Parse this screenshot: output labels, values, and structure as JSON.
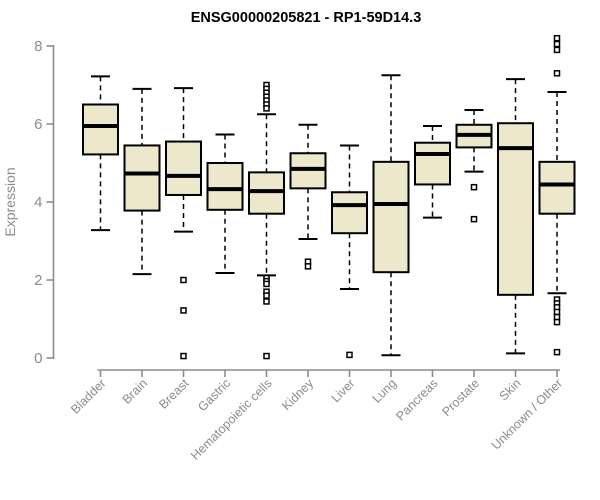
{
  "chart_data": {
    "type": "boxplot",
    "title": "ENSG00000205821 - RP1-59D14.3",
    "ylabel": "Expression",
    "xlabel": "",
    "ylim": [
      0,
      8
    ],
    "yticks": [
      0,
      2,
      4,
      6,
      8
    ],
    "grid": false,
    "legend_position": "none",
    "colors": {
      "box_fill": "#EDE7CB",
      "box_border": "#000000",
      "median": "#000000",
      "whisker": "#000000",
      "outlier_fill": "#ffffff",
      "axis": "#8c8c8c",
      "title": "#000000"
    },
    "categories": [
      "Bladder",
      "Brain",
      "Breast",
      "Gastric",
      "Hematopoietic cells",
      "Kidney",
      "Liver",
      "Lung",
      "Pancreas",
      "Prostate",
      "Skin",
      "Unknown / Other"
    ],
    "series": [
      {
        "name": "Bladder",
        "whisker_low": 3.28,
        "q1": 5.22,
        "median": 5.95,
        "q3": 6.5,
        "whisker_high": 7.22,
        "outliers": []
      },
      {
        "name": "Brain",
        "whisker_low": 2.15,
        "q1": 3.78,
        "median": 4.73,
        "q3": 5.45,
        "whisker_high": 6.9,
        "outliers": []
      },
      {
        "name": "Breast",
        "whisker_low": 3.24,
        "q1": 4.18,
        "median": 4.67,
        "q3": 5.55,
        "whisker_high": 6.92,
        "outliers": [
          2.0,
          1.22,
          0.05
        ]
      },
      {
        "name": "Gastric",
        "whisker_low": 2.18,
        "q1": 3.8,
        "median": 4.33,
        "q3": 5.0,
        "whisker_high": 5.73,
        "outliers": []
      },
      {
        "name": "Hematopoietic cells",
        "whisker_low": 2.12,
        "q1": 3.7,
        "median": 4.28,
        "q3": 4.76,
        "whisker_high": 6.25,
        "outliers": [
          7.0,
          6.9,
          6.8,
          6.7,
          6.6,
          6.5,
          6.4,
          2.05,
          1.97,
          1.9,
          1.7,
          1.6,
          1.45,
          0.05
        ]
      },
      {
        "name": "Kidney",
        "whisker_low": 3.05,
        "q1": 4.35,
        "median": 4.85,
        "q3": 5.25,
        "whisker_high": 5.98,
        "outliers": [
          2.47,
          2.35
        ]
      },
      {
        "name": "Liver",
        "whisker_low": 1.77,
        "q1": 3.2,
        "median": 3.92,
        "q3": 4.25,
        "whisker_high": 5.45,
        "outliers": [
          0.08
        ]
      },
      {
        "name": "Lung",
        "whisker_low": 0.07,
        "q1": 2.2,
        "median": 3.95,
        "q3": 5.03,
        "whisker_high": 7.25,
        "outliers": []
      },
      {
        "name": "Pancreas",
        "whisker_low": 3.6,
        "q1": 4.45,
        "median": 5.23,
        "q3": 5.52,
        "whisker_high": 5.95,
        "outliers": []
      },
      {
        "name": "Prostate",
        "whisker_low": 4.78,
        "q1": 5.4,
        "median": 5.72,
        "q3": 5.98,
        "whisker_high": 6.36,
        "outliers": [
          4.38,
          3.56
        ]
      },
      {
        "name": "Skin",
        "whisker_low": 0.12,
        "q1": 1.62,
        "median": 5.38,
        "q3": 6.02,
        "whisker_high": 7.15,
        "outliers": []
      },
      {
        "name": "Unknown / Other",
        "whisker_low": 1.66,
        "q1": 3.7,
        "median": 4.45,
        "q3": 5.03,
        "whisker_high": 6.82,
        "outliers": [
          8.2,
          8.05,
          7.9,
          7.3,
          1.5,
          1.4,
          1.3,
          1.18,
          1.05,
          0.92,
          0.15
        ]
      }
    ]
  }
}
